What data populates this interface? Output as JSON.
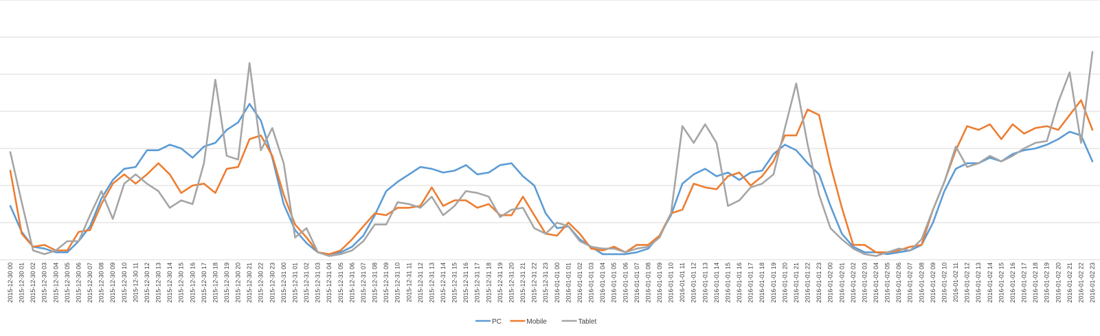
{
  "chart_data": {
    "type": "line",
    "title": "",
    "xlabel": "",
    "ylabel": "",
    "grid": true,
    "legend_position": "bottom",
    "y_axis_labels_visible": false,
    "ylim": [
      0,
      100
    ],
    "colors": {
      "PC": "#5b9bd5",
      "Mobile": "#ed7d31",
      "Tablet": "#a5a5a5",
      "grid": "#d9d9d9"
    },
    "x": [
      "2015-12-30 00",
      "2015-12-30 01",
      "2015-12-30 02",
      "2015-12-30 03",
      "2015-12-30 04",
      "2015-12-30 05",
      "2015-12-30 06",
      "2015-12-30 07",
      "2015-12-30 08",
      "2015-12-30 09",
      "2015-12-30 10",
      "2015-12-30 11",
      "2015-12-30 12",
      "2015-12-30 13",
      "2015-12-30 14",
      "2015-12-30 15",
      "2015-12-30 16",
      "2015-12-30 17",
      "2015-12-30 18",
      "2015-12-30 19",
      "2015-12-30 20",
      "2015-12-30 21",
      "2015-12-30 22",
      "2015-12-30 23",
      "2015-12-31 00",
      "2015-12-31 01",
      "2015-12-31 02",
      "2015-12-31 03",
      "2015-12-31 04",
      "2015-12-31 05",
      "2015-12-31 06",
      "2015-12-31 07",
      "2015-12-31 08",
      "2015-12-31 09",
      "2015-12-31 10",
      "2015-12-31 11",
      "2015-12-31 12",
      "2015-12-31 13",
      "2015-12-31 14",
      "2015-12-31 15",
      "2015-12-31 16",
      "2015-12-31 17",
      "2015-12-31 18",
      "2015-12-31 19",
      "2015-12-31 20",
      "2015-12-31 21",
      "2015-12-31 22",
      "2015-12-31 23",
      "2016-01-01 00",
      "2016-01-01 01",
      "2016-01-01 02",
      "2016-01-01 03",
      "2016-01-01 04",
      "2016-01-01 05",
      "2016-01-01 06",
      "2016-01-01 07",
      "2016-01-01 08",
      "2016-01-01 09",
      "2016-01-01 10",
      "2016-01-01 11",
      "2016-01-01 12",
      "2016-01-01 13",
      "2016-01-01 14",
      "2016-01-01 15",
      "2016-01-01 16",
      "2016-01-01 17",
      "2016-01-01 18",
      "2016-01-01 19",
      "2016-01-01 20",
      "2016-01-01 21",
      "2016-01-01 22",
      "2016-01-01 23",
      "2016-01-02 00",
      "2016-01-02 01",
      "2016-01-02 02",
      "2016-01-02 03",
      "2016-01-02 04",
      "2016-01-02 05",
      "2016-01-02 06",
      "2016-01-02 07",
      "2016-01-02 08",
      "2016-01-02 09",
      "2016-01-02 10",
      "2016-01-02 11",
      "2016-01-02 12",
      "2016-01-02 13",
      "2016-01-02 14",
      "2016-01-02 15",
      "2016-01-02 16",
      "2016-01-02 17",
      "2016-01-02 18",
      "2016-01-02 19",
      "2016-01-02 20",
      "2016-01-02 21",
      "2016-01-02 22",
      "2016-01-02 23"
    ],
    "series": [
      {
        "name": "PC",
        "color": "#5b9bd5",
        "values": [
          29,
          15,
          7,
          6,
          4,
          4,
          10,
          18,
          33,
          43,
          49,
          50,
          59,
          59,
          62,
          60,
          55,
          61,
          63,
          70,
          74,
          84,
          75,
          55,
          30,
          16,
          9,
          4,
          3,
          4,
          7,
          13,
          24,
          37,
          42,
          46,
          50,
          49,
          47,
          48,
          51,
          46,
          47,
          51,
          52,
          45,
          40,
          25,
          17,
          18,
          11,
          7,
          3,
          3,
          3,
          4,
          6,
          13,
          24,
          41,
          46,
          49,
          45,
          47,
          43,
          47,
          48,
          57,
          62,
          59,
          52,
          46,
          29,
          14,
          7,
          4,
          4,
          3,
          4,
          5,
          8,
          20,
          37,
          49,
          52,
          52,
          55,
          53,
          57,
          59,
          60,
          62,
          65,
          69,
          67,
          53
        ]
      },
      {
        "name": "Mobile",
        "color": "#ed7d31",
        "values": [
          48,
          14,
          7,
          8,
          5,
          5,
          15,
          16,
          30,
          41,
          46,
          41,
          46,
          52,
          46,
          36,
          40,
          41,
          36,
          49,
          50,
          65,
          67,
          56,
          35,
          19,
          12,
          4,
          3,
          5,
          11,
          18,
          25,
          24,
          28,
          28,
          29,
          39,
          29,
          32,
          32,
          28,
          30,
          24,
          24,
          34,
          24,
          14,
          13,
          20,
          14,
          6,
          5,
          7,
          4,
          8,
          8,
          13,
          25,
          27,
          41,
          39,
          38,
          45,
          47,
          40,
          45,
          53,
          67,
          67,
          81,
          78,
          51,
          28,
          8,
          8,
          4,
          4,
          5,
          7,
          8,
          27,
          42,
          59,
          72,
          70,
          73,
          65,
          73,
          68,
          71,
          72,
          70,
          78,
          86,
          70
        ]
      },
      {
        "name": "Tablet",
        "color": "#a5a5a5",
        "values": [
          58,
          31,
          5,
          3,
          5,
          10,
          10,
          24,
          37,
          22,
          41,
          46,
          41,
          37,
          28,
          32,
          30,
          52,
          97,
          56,
          54,
          106,
          59,
          71,
          52,
          12,
          17,
          4,
          2,
          3,
          5,
          10,
          19,
          19,
          31,
          30,
          28,
          34,
          24,
          29,
          37,
          36,
          34,
          23,
          27,
          28,
          17,
          14,
          20,
          18,
          10,
          7,
          6,
          6,
          4,
          6,
          7,
          12,
          25,
          72,
          63,
          73,
          63,
          29,
          32,
          39,
          41,
          46,
          71,
          95,
          62,
          35,
          17,
          11,
          6,
          3,
          2,
          4,
          6,
          5,
          11,
          27,
          42,
          61,
          50,
          52,
          56,
          53,
          56,
          60,
          63,
          64,
          85,
          101,
          63,
          112
        ]
      }
    ]
  }
}
